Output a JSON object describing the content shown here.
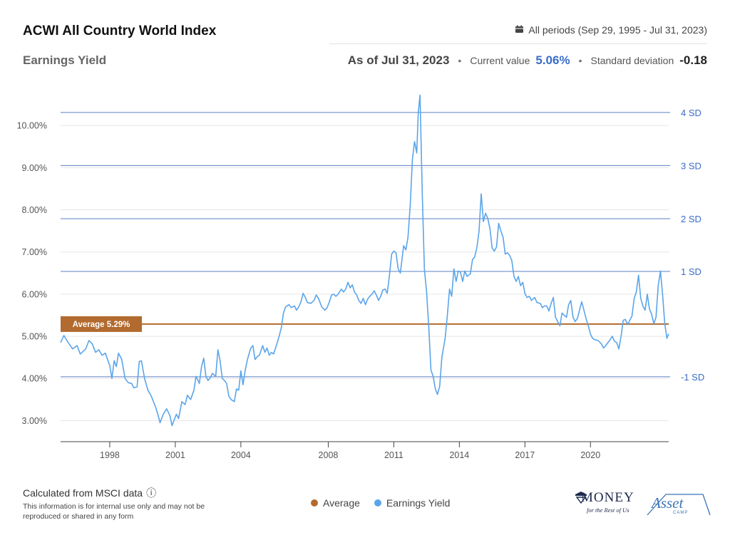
{
  "header": {
    "title": "ACWI All Country World Index",
    "subtitle": "Earnings Yield",
    "period_icon": "calendar-icon",
    "period_label": "All periods (Sep 29, 1995 - Jul 31, 2023)",
    "as_of": "As of Jul 31, 2023",
    "current_label": "Current value",
    "current_value": "5.06%",
    "sd_label": "Standard deviation",
    "sd_value": "-0.18",
    "bullet": "•"
  },
  "footer": {
    "source": "Calculated from MSCI data",
    "info_icon": "info-icon",
    "info_glyph": "ⓘ",
    "note": "This information is for internal use only and may not be reproduced or shared in any form"
  },
  "legend": [
    {
      "label": "Average",
      "color": "#b26a2e"
    },
    {
      "label": "Earnings Yield",
      "color": "#5aa5ea"
    }
  ],
  "logos": {
    "money_word": "MONEY",
    "money_tagline": "for the Rest of Us",
    "asset_word": "Asset",
    "asset_tagline": "CAMP"
  },
  "colors": {
    "series": "#5aa5ea",
    "average": "#b26a2e",
    "sd_line": "#5b7fc4",
    "grid": "#e6e6e6",
    "axis_text": "#555555",
    "sd_text": "#3a6cc9"
  },
  "chart_data": {
    "type": "line",
    "ylim": [
      2.5,
      10.95
    ],
    "x_range": [
      1995.75,
      2023.58
    ],
    "y_ticks": [
      {
        "value": 3,
        "label": "3.00%"
      },
      {
        "value": 4,
        "label": "4.00%"
      },
      {
        "value": 5,
        "label": "5.00%"
      },
      {
        "value": 6,
        "label": "6.00%"
      },
      {
        "value": 7,
        "label": "7.00%"
      },
      {
        "value": 8,
        "label": "8.00%"
      },
      {
        "value": 9,
        "label": "9.00%"
      },
      {
        "value": 10,
        "label": "10.00%"
      }
    ],
    "x_ticks": [
      {
        "value": 1998,
        "label": "1998"
      },
      {
        "value": 2001,
        "label": "2001"
      },
      {
        "value": 2004,
        "label": "2004"
      },
      {
        "value": 2008,
        "label": "2008"
      },
      {
        "value": 2011,
        "label": "2011"
      },
      {
        "value": 2014,
        "label": "2014"
      },
      {
        "value": 2017,
        "label": "2017"
      },
      {
        "value": 2020,
        "label": "2020"
      }
    ],
    "average": {
      "value": 5.29,
      "label": "Average 5.29%"
    },
    "sd_lines": [
      {
        "value": 10.31,
        "label": "4 SD"
      },
      {
        "value": 9.05,
        "label": "3 SD"
      },
      {
        "value": 7.79,
        "label": "2 SD"
      },
      {
        "value": 6.54,
        "label": "1 SD"
      },
      {
        "value": 4.04,
        "label": "-1 SD"
      }
    ],
    "series": [
      {
        "name": "Earnings Yield",
        "points": [
          [
            1995.75,
            4.85
          ],
          [
            1995.9,
            5.02
          ],
          [
            1996.1,
            4.85
          ],
          [
            1996.3,
            4.7
          ],
          [
            1996.5,
            4.78
          ],
          [
            1996.65,
            4.58
          ],
          [
            1996.9,
            4.7
          ],
          [
            1997.05,
            4.9
          ],
          [
            1997.2,
            4.82
          ],
          [
            1997.35,
            4.62
          ],
          [
            1997.5,
            4.68
          ],
          [
            1997.65,
            4.55
          ],
          [
            1997.8,
            4.6
          ],
          [
            1998.0,
            4.3
          ],
          [
            1998.1,
            4.0
          ],
          [
            1998.2,
            4.42
          ],
          [
            1998.3,
            4.28
          ],
          [
            1998.4,
            4.6
          ],
          [
            1998.55,
            4.45
          ],
          [
            1998.7,
            4.0
          ],
          [
            1998.85,
            3.9
          ],
          [
            1999.0,
            3.88
          ],
          [
            1999.1,
            3.78
          ],
          [
            1999.25,
            3.8
          ],
          [
            1999.35,
            4.4
          ],
          [
            1999.45,
            4.42
          ],
          [
            1999.6,
            3.98
          ],
          [
            1999.75,
            3.72
          ],
          [
            1999.9,
            3.58
          ],
          [
            2000.1,
            3.32
          ],
          [
            2000.2,
            3.15
          ],
          [
            2000.3,
            2.95
          ],
          [
            2000.45,
            3.15
          ],
          [
            2000.6,
            3.28
          ],
          [
            2000.75,
            3.12
          ],
          [
            2000.85,
            2.88
          ],
          [
            2000.95,
            3.02
          ],
          [
            2001.05,
            3.15
          ],
          [
            2001.15,
            3.05
          ],
          [
            2001.3,
            3.45
          ],
          [
            2001.45,
            3.38
          ],
          [
            2001.55,
            3.6
          ],
          [
            2001.7,
            3.5
          ],
          [
            2001.85,
            3.72
          ],
          [
            2001.95,
            4.05
          ],
          [
            2002.1,
            3.88
          ],
          [
            2002.2,
            4.28
          ],
          [
            2002.3,
            4.48
          ],
          [
            2002.4,
            4.05
          ],
          [
            2002.5,
            3.95
          ],
          [
            2002.6,
            4.02
          ],
          [
            2002.7,
            4.12
          ],
          [
            2002.85,
            4.05
          ],
          [
            2002.95,
            4.68
          ],
          [
            2003.05,
            4.42
          ],
          [
            2003.15,
            4.0
          ],
          [
            2003.25,
            3.95
          ],
          [
            2003.35,
            3.88
          ],
          [
            2003.45,
            3.58
          ],
          [
            2003.55,
            3.5
          ],
          [
            2003.7,
            3.45
          ],
          [
            2003.8,
            3.75
          ],
          [
            2003.9,
            3.72
          ],
          [
            2004.0,
            4.18
          ],
          [
            2004.1,
            3.85
          ],
          [
            2004.2,
            4.2
          ],
          [
            2004.3,
            4.45
          ],
          [
            2004.45,
            4.72
          ],
          [
            2004.55,
            4.78
          ],
          [
            2004.65,
            4.45
          ],
          [
            2004.75,
            4.52
          ],
          [
            2004.85,
            4.55
          ],
          [
            2005.0,
            4.78
          ],
          [
            2005.1,
            4.62
          ],
          [
            2005.2,
            4.72
          ],
          [
            2005.3,
            4.55
          ],
          [
            2005.4,
            4.62
          ],
          [
            2005.5,
            4.58
          ],
          [
            2005.65,
            4.82
          ],
          [
            2005.75,
            5.0
          ],
          [
            2005.85,
            5.2
          ],
          [
            2005.95,
            5.55
          ],
          [
            2006.05,
            5.7
          ],
          [
            2006.2,
            5.75
          ],
          [
            2006.3,
            5.68
          ],
          [
            2006.45,
            5.72
          ],
          [
            2006.55,
            5.62
          ],
          [
            2006.65,
            5.7
          ],
          [
            2006.75,
            5.82
          ],
          [
            2006.85,
            6.02
          ],
          [
            2006.95,
            5.92
          ],
          [
            2007.05,
            5.8
          ],
          [
            2007.2,
            5.78
          ],
          [
            2007.35,
            5.85
          ],
          [
            2007.45,
            5.98
          ],
          [
            2007.55,
            5.9
          ],
          [
            2007.7,
            5.7
          ],
          [
            2007.85,
            5.62
          ],
          [
            2007.95,
            5.68
          ],
          [
            2008.05,
            5.82
          ],
          [
            2008.15,
            5.98
          ],
          [
            2008.25,
            6.0
          ],
          [
            2008.35,
            5.95
          ],
          [
            2008.45,
            6.0
          ],
          [
            2008.6,
            6.12
          ],
          [
            2008.7,
            6.05
          ],
          [
            2008.8,
            6.12
          ],
          [
            2008.9,
            6.28
          ],
          [
            2009.0,
            6.15
          ],
          [
            2009.1,
            6.22
          ],
          [
            2009.2,
            6.05
          ],
          [
            2009.3,
            5.98
          ],
          [
            2009.4,
            5.85
          ],
          [
            2009.5,
            5.78
          ],
          [
            2009.6,
            5.9
          ],
          [
            2009.7,
            5.75
          ],
          [
            2009.8,
            5.88
          ],
          [
            2009.9,
            5.95
          ],
          [
            2010.0,
            6.0
          ],
          [
            2010.1,
            6.08
          ],
          [
            2010.2,
            5.98
          ],
          [
            2010.3,
            5.85
          ],
          [
            2010.4,
            5.95
          ],
          [
            2010.5,
            6.1
          ],
          [
            2010.6,
            6.12
          ],
          [
            2010.7,
            6.02
          ],
          [
            2010.8,
            6.45
          ],
          [
            2010.9,
            6.95
          ],
          [
            2011.0,
            7.02
          ],
          [
            2011.1,
            6.98
          ],
          [
            2011.2,
            6.6
          ],
          [
            2011.3,
            6.5
          ],
          [
            2011.45,
            7.15
          ],
          [
            2011.55,
            7.05
          ],
          [
            2011.65,
            7.35
          ],
          [
            2011.75,
            8.1
          ],
          [
            2011.85,
            9.2
          ],
          [
            2011.95,
            9.62
          ],
          [
            2012.05,
            9.35
          ],
          [
            2012.12,
            10.3
          ],
          [
            2012.2,
            10.72
          ],
          [
            2012.3,
            8.4
          ],
          [
            2012.4,
            6.6
          ],
          [
            2012.5,
            6.05
          ],
          [
            2012.6,
            5.2
          ],
          [
            2012.7,
            4.2
          ],
          [
            2012.8,
            4.05
          ],
          [
            2012.9,
            3.75
          ],
          [
            2013.0,
            3.62
          ],
          [
            2013.1,
            3.82
          ],
          [
            2013.2,
            4.5
          ],
          [
            2013.35,
            4.95
          ],
          [
            2013.45,
            5.5
          ],
          [
            2013.55,
            6.12
          ],
          [
            2013.65,
            5.95
          ],
          [
            2013.75,
            6.6
          ],
          [
            2013.85,
            6.3
          ],
          [
            2013.95,
            6.55
          ],
          [
            2014.05,
            6.52
          ],
          [
            2014.15,
            6.3
          ],
          [
            2014.25,
            6.55
          ],
          [
            2014.35,
            6.42
          ],
          [
            2014.5,
            6.48
          ],
          [
            2014.6,
            6.82
          ],
          [
            2014.7,
            6.88
          ],
          [
            2014.8,
            7.1
          ],
          [
            2014.9,
            7.5
          ],
          [
            2015.0,
            8.38
          ],
          [
            2015.1,
            7.72
          ],
          [
            2015.2,
            7.92
          ],
          [
            2015.3,
            7.8
          ],
          [
            2015.4,
            7.55
          ],
          [
            2015.5,
            7.1
          ],
          [
            2015.6,
            7.02
          ],
          [
            2015.7,
            7.12
          ],
          [
            2015.8,
            7.68
          ],
          [
            2015.9,
            7.5
          ],
          [
            2016.0,
            7.35
          ],
          [
            2016.1,
            6.95
          ],
          [
            2016.2,
            6.98
          ],
          [
            2016.3,
            6.92
          ],
          [
            2016.4,
            6.8
          ],
          [
            2016.5,
            6.42
          ],
          [
            2016.6,
            6.3
          ],
          [
            2016.7,
            6.42
          ],
          [
            2016.8,
            6.2
          ],
          [
            2016.9,
            6.28
          ],
          [
            2017.0,
            6.02
          ],
          [
            2017.1,
            5.92
          ],
          [
            2017.2,
            5.95
          ],
          [
            2017.3,
            5.85
          ],
          [
            2017.45,
            5.92
          ],
          [
            2017.55,
            5.8
          ],
          [
            2017.7,
            5.78
          ],
          [
            2017.8,
            5.68
          ],
          [
            2017.9,
            5.72
          ],
          [
            2018.0,
            5.72
          ],
          [
            2018.1,
            5.6
          ],
          [
            2018.2,
            5.78
          ],
          [
            2018.3,
            5.92
          ],
          [
            2018.4,
            5.45
          ],
          [
            2018.5,
            5.35
          ],
          [
            2018.6,
            5.25
          ],
          [
            2018.7,
            5.55
          ],
          [
            2018.8,
            5.5
          ],
          [
            2018.9,
            5.45
          ],
          [
            2019.0,
            5.75
          ],
          [
            2019.1,
            5.85
          ],
          [
            2019.2,
            5.45
          ],
          [
            2019.3,
            5.35
          ],
          [
            2019.4,
            5.42
          ],
          [
            2019.5,
            5.62
          ],
          [
            2019.6,
            5.82
          ],
          [
            2019.7,
            5.62
          ],
          [
            2019.8,
            5.42
          ],
          [
            2019.9,
            5.25
          ],
          [
            2020.0,
            5.05
          ],
          [
            2020.1,
            4.95
          ],
          [
            2020.2,
            4.92
          ],
          [
            2020.35,
            4.9
          ],
          [
            2020.5,
            4.82
          ],
          [
            2020.6,
            4.72
          ],
          [
            2020.7,
            4.78
          ],
          [
            2020.8,
            4.85
          ],
          [
            2020.9,
            4.92
          ],
          [
            2021.0,
            5.0
          ],
          [
            2021.1,
            4.88
          ],
          [
            2021.2,
            4.85
          ],
          [
            2021.3,
            4.7
          ],
          [
            2021.4,
            5.0
          ],
          [
            2021.5,
            5.38
          ],
          [
            2021.6,
            5.4
          ],
          [
            2021.7,
            5.28
          ],
          [
            2021.8,
            5.38
          ],
          [
            2021.9,
            5.48
          ],
          [
            2022.0,
            5.9
          ],
          [
            2022.1,
            6.05
          ],
          [
            2022.2,
            6.45
          ],
          [
            2022.3,
            5.9
          ],
          [
            2022.4,
            5.72
          ],
          [
            2022.5,
            5.62
          ],
          [
            2022.6,
            6.0
          ],
          [
            2022.7,
            5.65
          ],
          [
            2022.8,
            5.52
          ],
          [
            2022.9,
            5.3
          ],
          [
            2023.0,
            5.45
          ],
          [
            2023.1,
            6.2
          ],
          [
            2023.2,
            6.55
          ],
          [
            2023.3,
            6.0
          ],
          [
            2023.4,
            5.3
          ],
          [
            2023.5,
            4.95
          ],
          [
            2023.58,
            5.06
          ]
        ]
      }
    ]
  }
}
